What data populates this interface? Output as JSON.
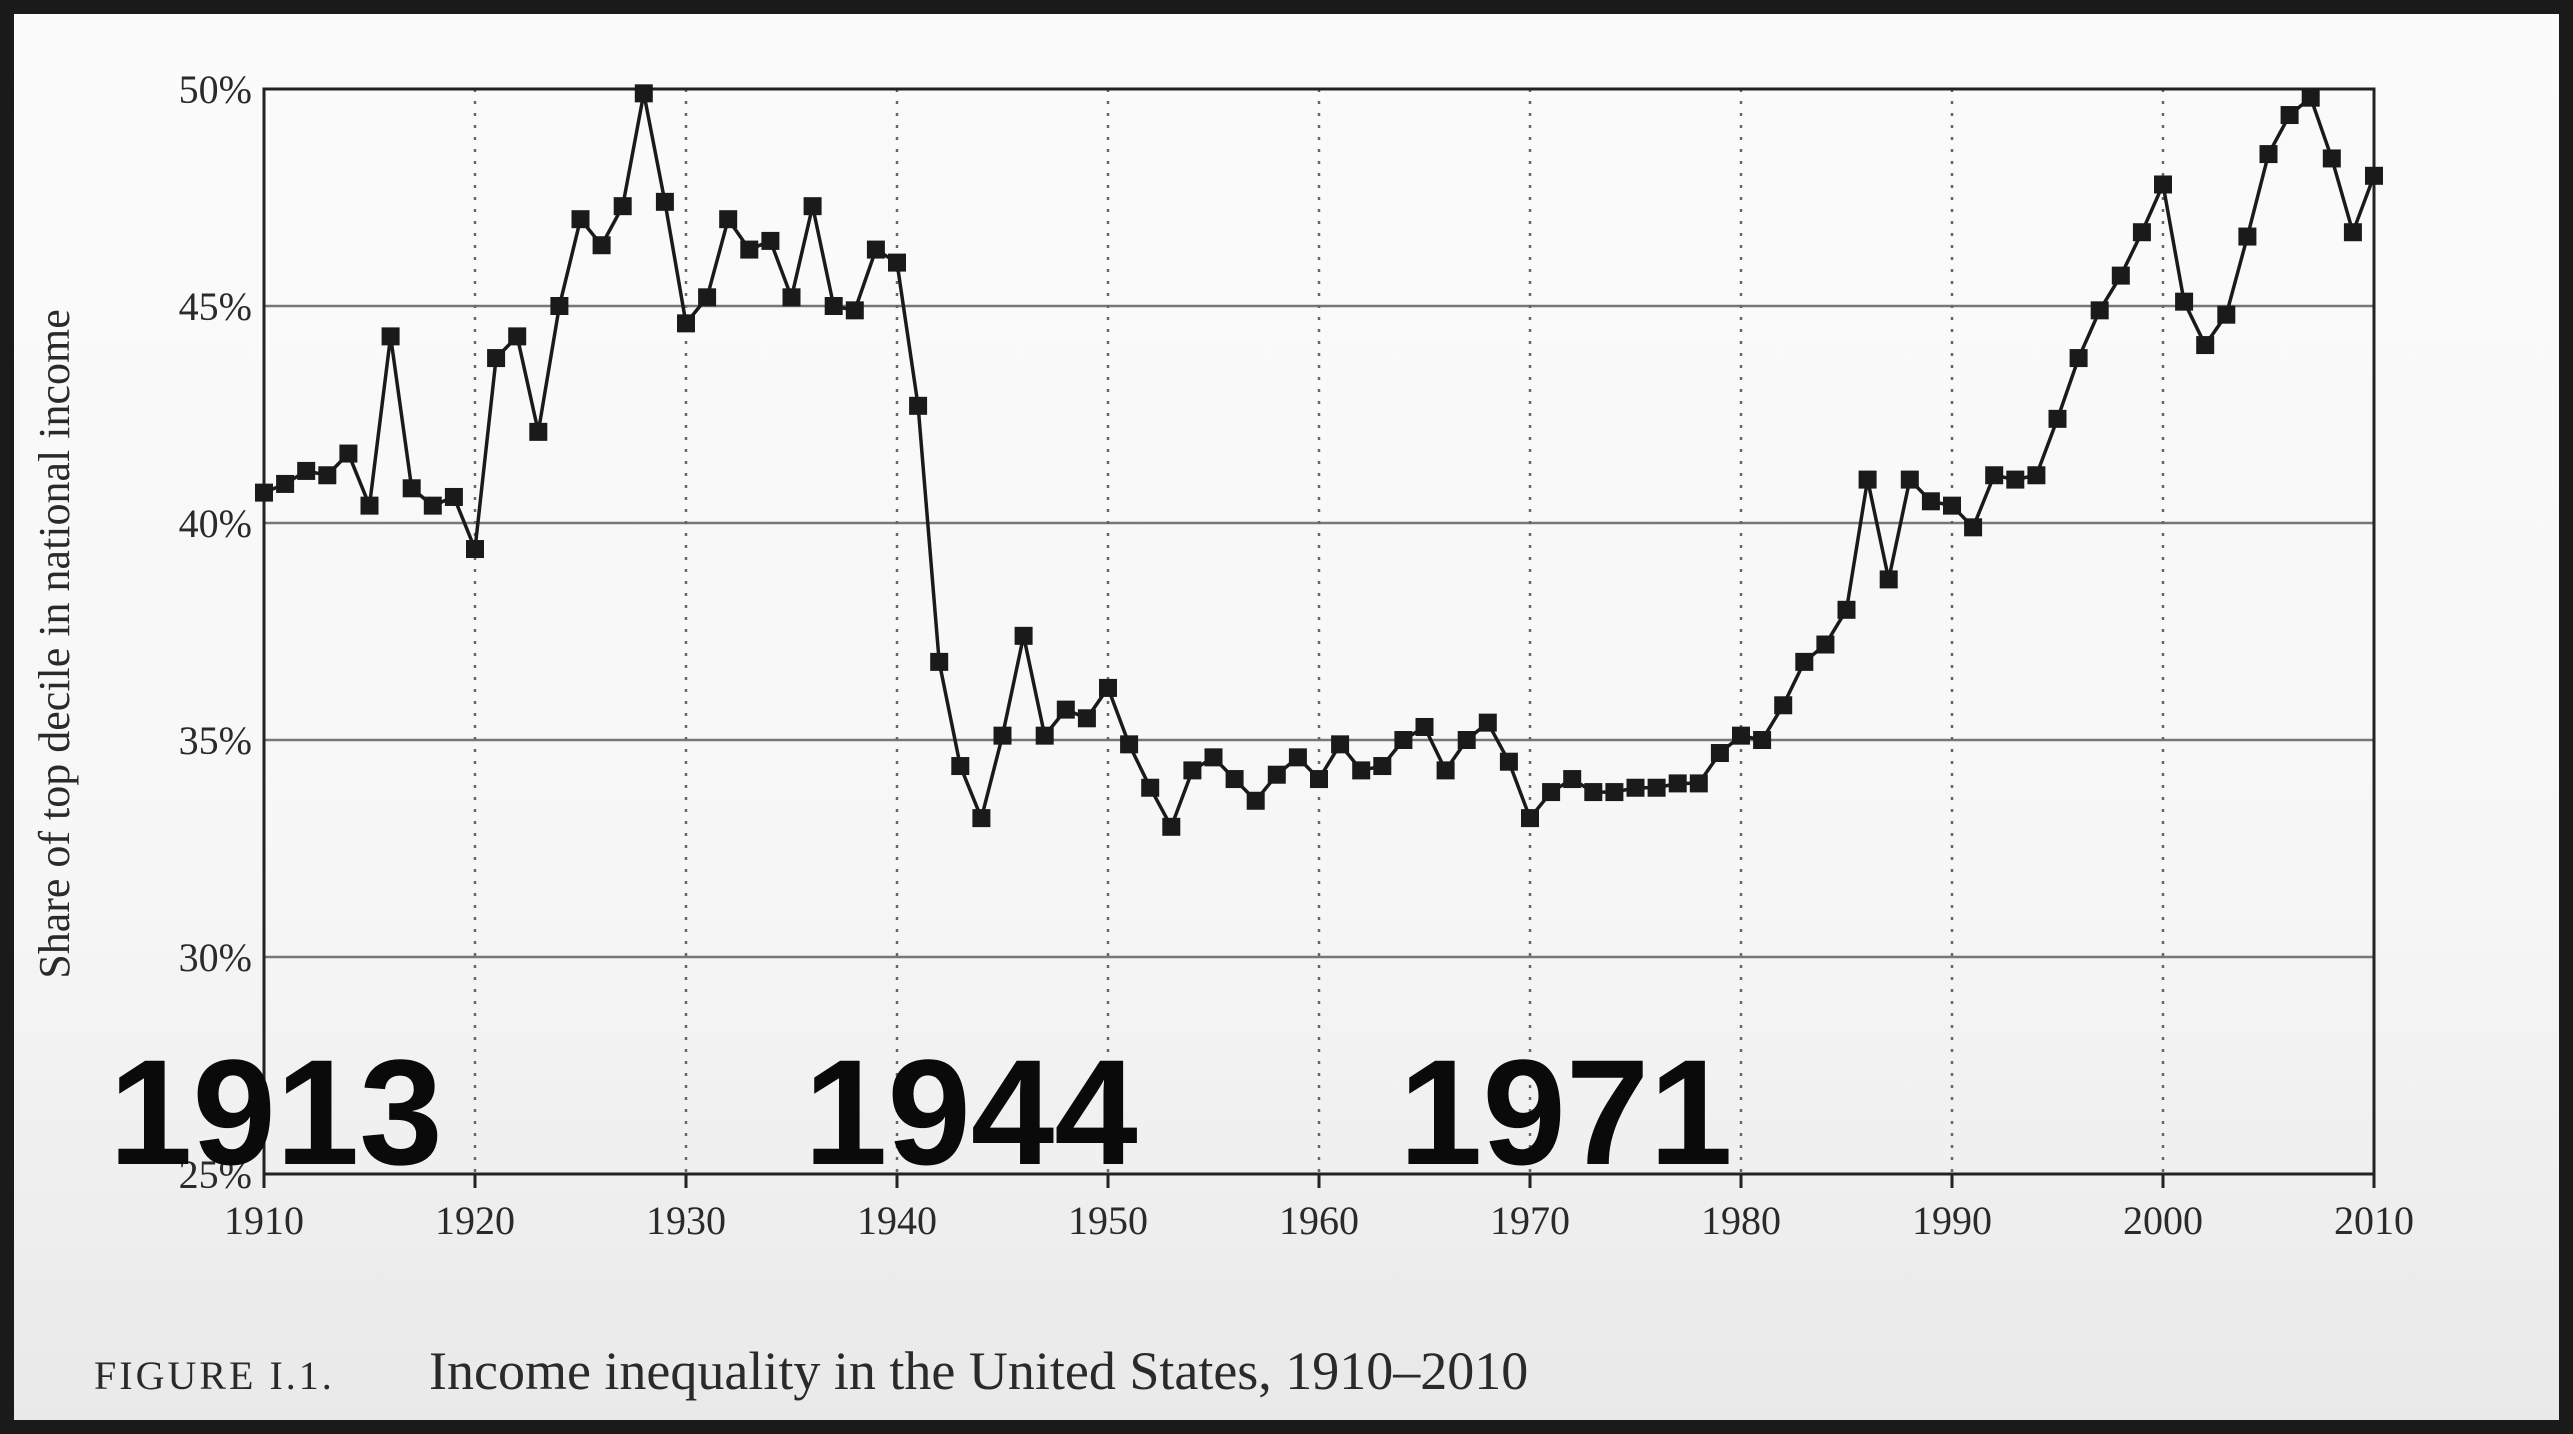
{
  "chart_data": {
    "type": "line",
    "ylabel": "Share of top decile in national income",
    "caption_label": "FIGURE I.1.",
    "caption": "Income inequality in the United States, 1910–2010",
    "annotations": [
      "1913",
      "1944",
      "1971"
    ],
    "x": [
      1910,
      1911,
      1912,
      1913,
      1914,
      1915,
      1916,
      1917,
      1918,
      1919,
      1920,
      1921,
      1922,
      1923,
      1924,
      1925,
      1926,
      1927,
      1928,
      1929,
      1930,
      1931,
      1932,
      1933,
      1934,
      1935,
      1936,
      1937,
      1938,
      1939,
      1940,
      1941,
      1942,
      1943,
      1944,
      1945,
      1946,
      1947,
      1948,
      1949,
      1950,
      1951,
      1952,
      1953,
      1954,
      1955,
      1956,
      1957,
      1958,
      1959,
      1960,
      1961,
      1962,
      1963,
      1964,
      1965,
      1966,
      1967,
      1968,
      1969,
      1970,
      1971,
      1972,
      1973,
      1974,
      1975,
      1976,
      1977,
      1978,
      1979,
      1980,
      1981,
      1982,
      1983,
      1984,
      1985,
      1986,
      1987,
      1988,
      1989,
      1990,
      1991,
      1992,
      1993,
      1994,
      1995,
      1996,
      1997,
      1998,
      1999,
      2000,
      2001,
      2002,
      2003,
      2004,
      2005,
      2006,
      2007,
      2008,
      2009,
      2010
    ],
    "series": [
      {
        "name": "Share of top decile",
        "color": "#1a1a1a",
        "values": [
          40.7,
          40.9,
          41.2,
          41.1,
          41.6,
          40.4,
          44.3,
          40.8,
          40.4,
          40.6,
          39.4,
          43.8,
          44.3,
          42.1,
          45.0,
          47.0,
          46.4,
          47.3,
          49.9,
          47.4,
          44.6,
          45.2,
          47.0,
          46.3,
          46.5,
          45.2,
          47.3,
          45.0,
          44.9,
          46.3,
          46.0,
          42.7,
          36.8,
          34.4,
          33.2,
          35.1,
          37.4,
          35.1,
          35.7,
          35.5,
          36.2,
          34.9,
          33.9,
          33.0,
          34.3,
          34.6,
          34.1,
          33.6,
          34.2,
          34.6,
          34.1,
          34.9,
          34.3,
          34.4,
          35.0,
          35.3,
          34.3,
          35.0,
          35.4,
          34.5,
          33.2,
          33.8,
          34.1,
          33.8,
          33.8,
          33.9,
          33.9,
          34.0,
          34.0,
          34.7,
          35.1,
          35.0,
          35.8,
          36.8,
          37.2,
          38.0,
          41.0,
          38.7,
          41.0,
          40.5,
          40.4,
          39.9,
          41.1,
          41.0,
          41.1,
          42.4,
          43.8,
          44.9,
          45.7,
          46.7,
          47.8,
          45.1,
          44.1,
          44.8,
          46.6,
          48.5,
          49.4,
          49.8,
          48.4,
          46.7,
          48.0
        ]
      }
    ],
    "xlim": [
      1910,
      2010
    ],
    "xticks": [
      1910,
      1920,
      1930,
      1940,
      1950,
      1960,
      1970,
      1980,
      1990,
      2000,
      2010
    ],
    "ylim": [
      25,
      50
    ],
    "yticks": [
      {
        "value": 25,
        "label": "25%"
      },
      {
        "value": 30,
        "label": "30%"
      },
      {
        "value": 35,
        "label": "35%"
      },
      {
        "value": 40,
        "label": "40%"
      },
      {
        "value": 45,
        "label": "45%"
      },
      {
        "value": 50,
        "label": "50%"
      }
    ],
    "grid": true
  }
}
